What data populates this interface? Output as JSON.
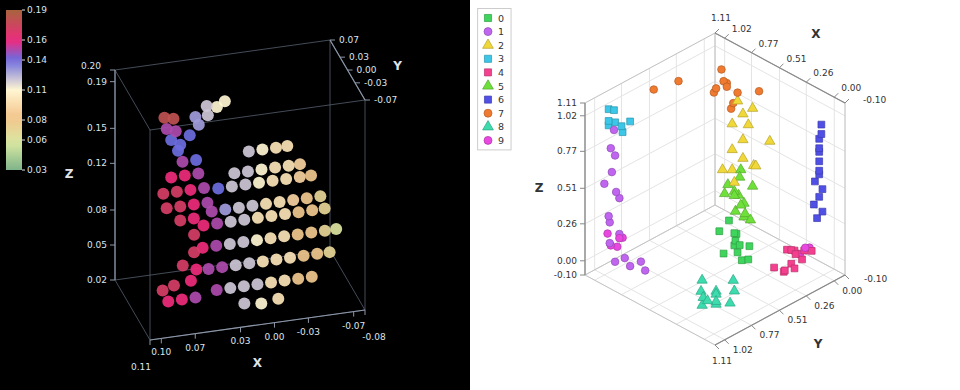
{
  "chart_data": [
    {
      "type": "scatter3d",
      "xlabel": "X",
      "ylabel": "Y",
      "zlabel": "Z",
      "xlim": [
        -0.08,
        0.11
      ],
      "xticks": [
        -0.08,
        -0.07,
        -0.03,
        {
          "value": 0,
          "label": "0.00"
        },
        0.03,
        0.07,
        {
          "value": 0.1,
          "label": "0.10"
        },
        0.11
      ],
      "ylim": [
        -0.07,
        0.07
      ],
      "yticks": [
        -0.07,
        -0.03,
        {
          "value": 0,
          "label": "0.00"
        },
        0.03,
        0.07
      ],
      "zlim": [
        0.02,
        0.2
      ],
      "zticks": [
        0.02,
        0.05,
        0.08,
        0.12,
        0.15,
        0.19,
        {
          "value": 0.2,
          "label": "0.20"
        }
      ],
      "clim": [
        0.03,
        0.19
      ],
      "cticks": [
        0.03,
        0.06,
        0.08,
        0.11,
        0.14,
        0.16,
        0.19
      ],
      "grid": false,
      "series": [
        {
          "x": [
            0.04,
            0.028,
            0.016,
            0.004,
            -0.008,
            -0.02,
            -0.032,
            -0.044,
            0.045,
            0.033,
            0.021,
            0.009,
            -0.003,
            -0.015,
            -0.027,
            -0.039,
            -0.051,
            -0.062,
            0.048,
            0.036,
            0.024,
            0.012,
            0,
            -0.012,
            -0.024,
            -0.036,
            -0.048,
            -0.06,
            -0.07,
            0.045,
            0.033,
            0.021,
            0.009,
            -0.003,
            -0.015,
            -0.027,
            -0.039,
            -0.051,
            -0.062,
            0.04,
            0.028,
            0.016,
            0.004,
            -0.008,
            -0.02,
            -0.032,
            -0.044,
            -0.056,
            0.032,
            0.02,
            0.008,
            -0.004,
            -0.016,
            -0.028,
            -0.04,
            -0.05,
            0.02,
            0.008,
            -0.004,
            -0.016,
            -0.028,
            -0.038,
            0.005,
            -0.007,
            -0.019,
            -0.029,
            0.07,
            0.058,
            0.082,
            0.07,
            0.058,
            0.046,
            0.085,
            0.073,
            0.061,
            0.049,
            0.078,
            0.066,
            0.054,
            0.068,
            0.056,
            0.072,
            0.078,
            0.082,
            0.084,
            0.07,
            0.074,
            0.076,
            0.055,
            0.047,
            0.039,
            0.031,
            0.024,
            0.05,
            0.04,
            0.085,
            0.073,
            0.061,
            0.08,
            0.065,
            0.09,
            0.02,
            0.005,
            -0.01,
            0.06,
            0.06,
            0.058,
            0.07
          ],
          "y": [
            -0.02,
            -0.02,
            -0.02,
            -0.02,
            -0.02,
            -0.02,
            -0.02,
            -0.02,
            -0.01,
            -0.01,
            -0.01,
            -0.01,
            -0.01,
            -0.01,
            -0.01,
            -0.01,
            -0.01,
            -0.01,
            0,
            0,
            0,
            0,
            0,
            0,
            0,
            0,
            0,
            0,
            0,
            0.01,
            0.01,
            0.01,
            0.01,
            0.01,
            0.01,
            0.01,
            0.01,
            0.01,
            0.01,
            0,
            0,
            0,
            0,
            0,
            0,
            0,
            0,
            0,
            0.01,
            0.01,
            0.01,
            0.01,
            0.01,
            0.01,
            0.01,
            0.01,
            0,
            0,
            0,
            0,
            0,
            0,
            0.01,
            0.01,
            0.01,
            0.01,
            -0.01,
            -0.01,
            -0.01,
            -0.01,
            -0.01,
            -0.01,
            -0.01,
            -0.01,
            -0.01,
            -0.01,
            -0.01,
            -0.01,
            -0.01,
            -0.01,
            -0.01,
            -0.01,
            -0.01,
            -0.01,
            -0.01,
            -0.01,
            -0.01,
            -0.01,
            0.02,
            0.02,
            0.02,
            0.02,
            0.02,
            0.02,
            0.02,
            -0.03,
            -0.03,
            -0.03,
            -0.03,
            -0.03,
            -0.03,
            -0.04,
            -0.04,
            -0.04,
            -0.02,
            -0.02,
            -0.02,
            -0.02
          ],
          "z": [
            0.035,
            0.035,
            0.035,
            0.035,
            0.035,
            0.035,
            0.035,
            0.035,
            0.05,
            0.05,
            0.05,
            0.05,
            0.05,
            0.05,
            0.05,
            0.05,
            0.05,
            0.05,
            0.065,
            0.065,
            0.065,
            0.065,
            0.065,
            0.065,
            0.065,
            0.065,
            0.065,
            0.065,
            0.065,
            0.08,
            0.08,
            0.08,
            0.08,
            0.08,
            0.08,
            0.08,
            0.08,
            0.08,
            0.08,
            0.095,
            0.095,
            0.095,
            0.095,
            0.095,
            0.095,
            0.095,
            0.095,
            0.095,
            0.11,
            0.11,
            0.11,
            0.11,
            0.11,
            0.11,
            0.11,
            0.11,
            0.125,
            0.125,
            0.125,
            0.125,
            0.125,
            0.125,
            0.138,
            0.138,
            0.138,
            0.138,
            0.095,
            0.095,
            0.107,
            0.107,
            0.107,
            0.107,
            0.12,
            0.12,
            0.12,
            0.12,
            0.133,
            0.133,
            0.133,
            0.145,
            0.145,
            0.155,
            0.165,
            0.175,
            0.185,
            0.16,
            0.172,
            0.183,
            0.155,
            0.163,
            0.17,
            0.176,
            0.18,
            0.17,
            0.178,
            0.035,
            0.035,
            0.035,
            0.048,
            0.05,
            0.045,
            0.028,
            0.026,
            0.028,
            0.07,
            0.085,
            0.055,
            0.06
          ],
          "color_values": [
            0.15,
            0.12,
            0.12,
            0.12,
            0.1,
            0.1,
            0.08,
            0.08,
            0.15,
            0.15,
            0.12,
            0.12,
            0.1,
            0.1,
            0.1,
            0.08,
            0.08,
            0.07,
            0.16,
            0.15,
            0.12,
            0.12,
            0.11,
            0.1,
            0.1,
            0.08,
            0.08,
            0.07,
            0.06,
            0.16,
            0.15,
            0.12,
            0.12,
            0.1,
            0.1,
            0.1,
            0.08,
            0.08,
            0.07,
            0.15,
            0.13,
            0.12,
            0.12,
            0.1,
            0.1,
            0.09,
            0.08,
            0.07,
            0.14,
            0.12,
            0.12,
            0.11,
            0.1,
            0.1,
            0.09,
            0.08,
            0.12,
            0.12,
            0.11,
            0.1,
            0.1,
            0.09,
            0.12,
            0.11,
            0.1,
            0.1,
            0.17,
            0.16,
            0.17,
            0.17,
            0.16,
            0.15,
            0.17,
            0.17,
            0.16,
            0.15,
            0.16,
            0.16,
            0.15,
            0.15,
            0.14,
            0.14,
            0.14,
            0.15,
            0.18,
            0.14,
            0.15,
            0.18,
            0.14,
            0.13,
            0.12,
            0.11,
            0.11,
            0.13,
            0.12,
            0.16,
            0.16,
            0.15,
            0.17,
            0.16,
            0.17,
            0.12,
            0.11,
            0.1,
            0.17,
            0.17,
            0.16,
            0.17
          ]
        }
      ]
    },
    {
      "type": "scatter3d",
      "xlabel": "X",
      "ylabel": "Y",
      "zlabel": "Z",
      "xlim": [
        -0.1,
        1.11
      ],
      "xticks": [
        {
          "value": -0.1,
          "label": "-0.10"
        },
        {
          "value": 0,
          "label": "0.00"
        },
        0.26,
        0.51,
        0.77,
        1.02,
        1.11
      ],
      "ylim": [
        -0.1,
        1.11
      ],
      "yticks": [
        {
          "value": -0.1,
          "label": "-0.10"
        },
        {
          "value": 0,
          "label": "0.00"
        },
        0.26,
        0.51,
        0.77,
        1.02,
        1.11
      ],
      "zlim": [
        -0.1,
        1.11
      ],
      "zticks": [
        {
          "value": -0.1,
          "label": "-0.10"
        },
        {
          "value": 0,
          "label": "0.00"
        },
        0.26,
        0.51,
        0.77,
        1.02,
        1.11
      ],
      "grid": true,
      "legend": "top-left",
      "series": [
        {
          "name": "0",
          "color": "#3fd45c",
          "marker": "square",
          "x": [
            0.3,
            0.35,
            0.4,
            0.28,
            0.45,
            0.33,
            0.38,
            0.42,
            0.25,
            0.36,
            0.31,
            0.47
          ],
          "y": [
            0.4,
            0.45,
            0.42,
            0.5,
            0.38,
            0.48,
            0.55,
            0.46,
            0.44,
            0.4,
            0.52,
            0.5
          ],
          "z": [
            0.05,
            0.1,
            0.15,
            0.2,
            0.08,
            0.25,
            0.12,
            0.3,
            0.18,
            0.02,
            0.28,
            0.22
          ]
        },
        {
          "name": "1",
          "color": "#c065f0",
          "marker": "circle",
          "x": [
            1.0,
            0.98,
            1.02,
            0.99,
            1.01,
            0.97,
            1.0,
            0.98,
            1.02,
            0.96,
            0.85,
            0.78,
            0.72,
            0.9,
            0.66,
            1.0
          ],
          "y": [
            0.95,
            1.0,
            0.92,
            0.98,
            1.03,
            0.96,
            0.9,
            1.02,
            0.97,
            0.94,
            1.0,
            1.02,
            0.98,
            1.04,
            1.0,
            0.99
          ],
          "z": [
            0.9,
            0.8,
            0.7,
            0.62,
            0.55,
            0.48,
            0.4,
            0.33,
            0.25,
            0.18,
            0.08,
            0.06,
            0.1,
            0.05,
            0.07,
            0.12
          ]
        },
        {
          "name": "2",
          "color": "#f0d838",
          "marker": "triangle",
          "x": [
            0.35,
            0.4,
            0.5,
            0.45,
            0.3,
            0.55,
            0.6,
            0.38,
            0.42,
            0.65,
            0.25,
            0.48,
            0.52,
            0.7
          ],
          "y": [
            0.3,
            0.35,
            0.25,
            0.4,
            0.2,
            0.3,
            0.15,
            0.45,
            0.28,
            0.2,
            0.38,
            0.18,
            0.42,
            0.1
          ],
          "z": [
            0.65,
            0.7,
            0.75,
            0.62,
            0.8,
            0.68,
            0.85,
            0.58,
            0.9,
            0.78,
            0.72,
            0.95,
            0.6,
            0.88
          ]
        },
        {
          "name": "3",
          "color": "#3cc6e8",
          "marker": "square",
          "x": [
            1.02,
            0.98,
            1.0,
            0.95,
            1.04,
            0.9,
            0.85,
            0.99
          ],
          "y": [
            0.98,
            1.02,
            0.94,
            1.0,
            0.96,
            0.9,
            1.03,
            0.88
          ],
          "z": [
            1.05,
            1.0,
            0.95,
            1.08,
            0.92,
            0.98,
            1.02,
            0.86
          ]
        },
        {
          "name": "4",
          "color": "#f4408e",
          "marker": "square",
          "x": [
            0.05,
            0.1,
            0.08,
            0.02,
            0.12,
            0.06,
            0.15,
            0.04,
            0.09,
            0.18,
            0.03,
            0.11
          ],
          "y": [
            0.15,
            0.2,
            0.1,
            0.25,
            0.18,
            0.3,
            0.12,
            0.22,
            0.28,
            0.16,
            0.08,
            0.35
          ],
          "z": [
            0.05,
            0.02,
            0.08,
            0.04,
            0.1,
            0.03,
            0.06,
            0.12,
            0.0,
            0.07,
            0.09,
            0.05
          ]
        },
        {
          "name": "5",
          "color": "#6ee03a",
          "marker": "triangle",
          "x": [
            0.38,
            0.42,
            0.4,
            0.35,
            0.45,
            0.36,
            0.44,
            0.4,
            0.33,
            0.47,
            0.39,
            0.41,
            0.3,
            0.5
          ],
          "y": [
            0.36,
            0.4,
            0.34,
            0.42,
            0.38,
            0.3,
            0.45,
            0.38,
            0.4,
            0.32,
            0.44,
            0.36,
            0.38,
            0.42
          ],
          "z": [
            0.3,
            0.34,
            0.38,
            0.42,
            0.46,
            0.5,
            0.54,
            0.58,
            0.36,
            0.4,
            0.48,
            0.62,
            0.32,
            0.44
          ]
        },
        {
          "name": "6",
          "color": "#5050e6",
          "marker": "square",
          "x": [
            0.02,
            0.0,
            0.03,
            0.01,
            0.04,
            0.02,
            0.0,
            0.03,
            0.05,
            0.01,
            0.02,
            0.04,
            0.0,
            0.03
          ],
          "y": [
            0.0,
            0.02,
            0.01,
            0.03,
            0.0,
            0.02,
            0.04,
            0.01,
            0.03,
            0.0,
            0.02,
            0.05,
            0.01,
            0.03
          ],
          "z": [
            0.95,
            0.9,
            0.85,
            0.8,
            0.75,
            0.7,
            0.65,
            0.6,
            0.55,
            0.5,
            0.45,
            0.4,
            0.35,
            0.3
          ]
        },
        {
          "name": "7",
          "color": "#f07a30",
          "marker": "circle",
          "x": [
            0.9,
            0.85,
            0.88,
            0.92,
            0.8,
            0.86,
            0.6,
            0.7,
            0.95,
            0.75,
            0.5,
            0.98
          ],
          "y": [
            0.05,
            0.08,
            0.02,
            0.1,
            0.04,
            0.0,
            0.2,
            0.3,
            0.4,
            0.15,
            0.1,
            0.6
          ],
          "z": [
            1.0,
            0.95,
            0.9,
            0.85,
            0.8,
            0.72,
            1.02,
            1.05,
            1.04,
            0.98,
            1.03,
            1.05
          ]
        },
        {
          "name": "8",
          "color": "#3cdcae",
          "marker": "triangle",
          "x": [
            0.1,
            0.15,
            0.05,
            0.2,
            0.12,
            0.08,
            0.25,
            0.18,
            0.02,
            0.14,
            0.22,
            0.06
          ],
          "y": [
            0.9,
            0.85,
            0.95,
            0.8,
            1.0,
            0.75,
            0.88,
            0.95,
            0.85,
            0.7,
            0.92,
            1.02
          ],
          "z": [
            0.02,
            0.05,
            0.08,
            0.03,
            0.1,
            0.06,
            0.12,
            0.0,
            0.04,
            0.09,
            0.07,
            0.11
          ]
        },
        {
          "name": "9",
          "color": "#e848e0",
          "marker": "circle",
          "x": [
            0.95,
            1.0,
            0.9,
            1.02,
            0.08,
            0.12,
            0.05,
            0.97
          ],
          "y": [
            0.92,
            0.98,
            1.0,
            0.9,
            0.05,
            0.1,
            0.12,
            1.04
          ],
          "z": [
            0.15,
            0.1,
            0.2,
            0.05,
            0.08,
            0.04,
            0.12,
            0.22
          ]
        }
      ]
    }
  ]
}
